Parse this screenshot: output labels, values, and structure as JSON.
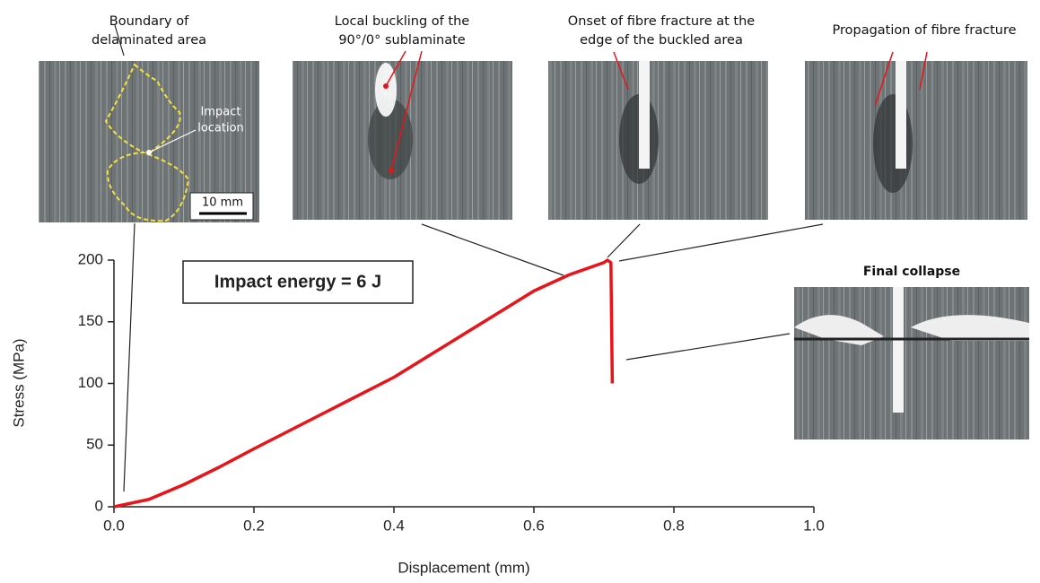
{
  "chart_data": {
    "type": "line",
    "xlabel": "Displacement (mm)",
    "ylabel": "Stress (MPa)",
    "x": [
      0,
      0.05,
      0.1,
      0.15,
      0.2,
      0.3,
      0.4,
      0.5,
      0.6,
      0.65,
      0.7,
      0.705,
      0.71,
      0.712
    ],
    "values": [
      0,
      6,
      18,
      32,
      47,
      76,
      105,
      140,
      175,
      188,
      198,
      200,
      198,
      100
    ],
    "color": "#e8141a",
    "xlim": [
      0,
      1
    ],
    "ylim": [
      0,
      200
    ],
    "xticks": [
      {
        "value": 0,
        "label": "0.0"
      },
      0.2,
      0.4,
      0.6,
      0.8,
      {
        "value": 1,
        "label": "1.0"
      }
    ],
    "yticks": [
      0,
      50,
      100,
      150,
      200
    ],
    "annotations": [
      {
        "lines": [
          "Boundary of",
          "delaminated area"
        ]
      },
      {
        "lines": [
          "Local buckling of the",
          "90°/0° sublaminate"
        ]
      },
      {
        "lines": [
          "Onset of fibre fracture at the",
          "edge of the buckled area"
        ]
      },
      {
        "lines": [
          "Propagation of fibre fracture"
        ]
      }
    ],
    "impact_location": [
      "Impact",
      "location"
    ],
    "scale_bar": "10 mm",
    "final_collapse": "Final collapse",
    "impact_energy": "Impact energy = 6 J"
  }
}
